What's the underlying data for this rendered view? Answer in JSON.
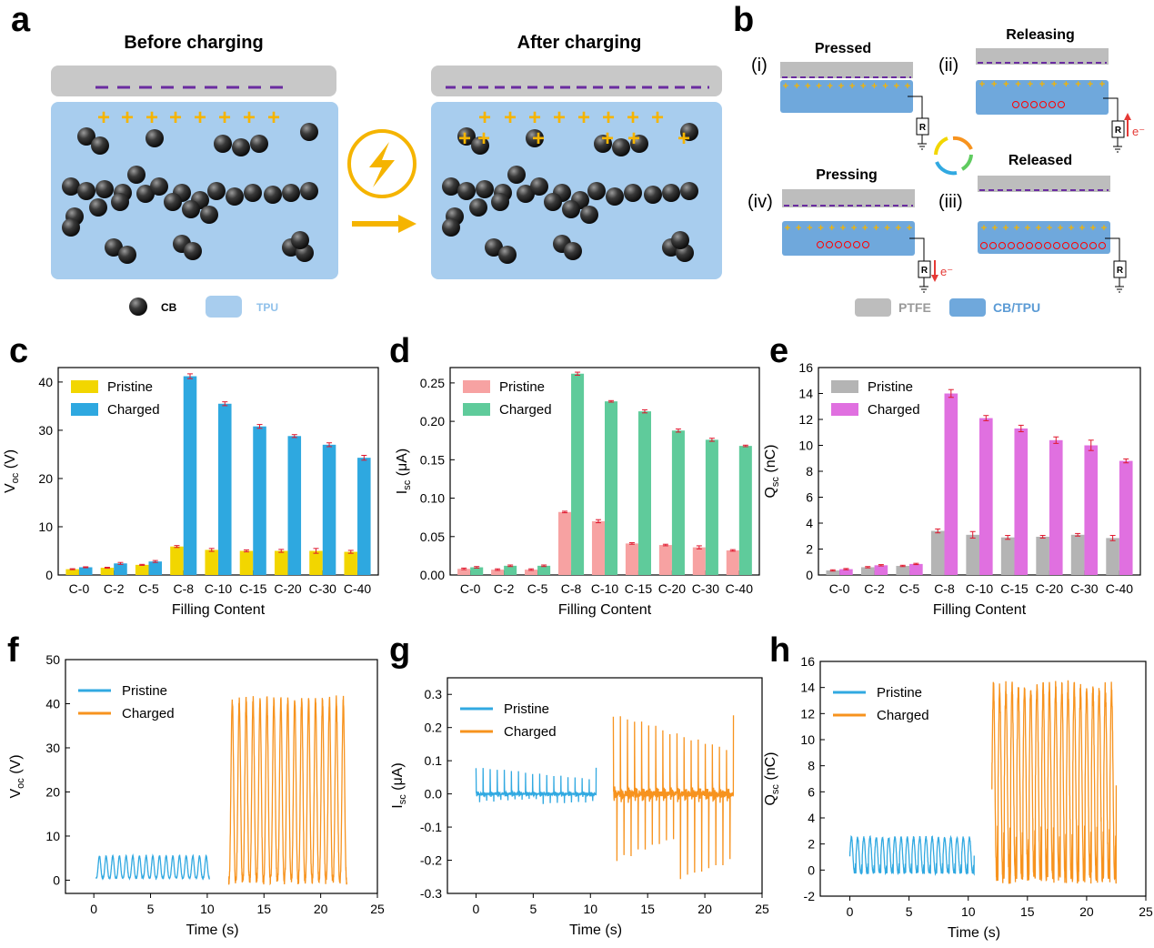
{
  "panels": {
    "a": {
      "letter": "a",
      "left_title": "Before charging",
      "right_title": "After charging",
      "legend": [
        "CB",
        "TPU"
      ],
      "colors": {
        "ptfe": "#c8c8c8",
        "tpu": "#a8cdee",
        "plus": "#f5b400",
        "dash": "#6a2ca0",
        "arrow": "#f5b400"
      }
    },
    "b": {
      "letter": "b",
      "stages": [
        {
          "roman": "(i)",
          "title": "Pressed"
        },
        {
          "roman": "(ii)",
          "title": "Releasing"
        },
        {
          "roman": "(iii)",
          "title": "Released"
        },
        {
          "roman": "(iv)",
          "title": "Pressing"
        }
      ],
      "resistor": "R",
      "electron": "e⁻",
      "legend": [
        "PTFE",
        "CB/TPU"
      ],
      "colors": {
        "ptfe": "#bdbdbd",
        "cbtpu": "#6fa8dc",
        "ring": "#ff0000",
        "arrow": "#e53935"
      }
    },
    "c": {
      "letter": "c"
    },
    "d": {
      "letter": "d"
    },
    "e": {
      "letter": "e"
    },
    "f": {
      "letter": "f"
    },
    "g": {
      "letter": "g"
    },
    "h": {
      "letter": "h"
    }
  },
  "chart_data": [
    {
      "id": "c",
      "type": "bar",
      "xlabel": "Filling Content",
      "ylabel": "Voc (V)",
      "ylim": [
        0,
        43
      ],
      "yticks": [
        0,
        10,
        20,
        30,
        40
      ],
      "categories": [
        "C-0",
        "C-2",
        "C-5",
        "C-8",
        "C-10",
        "C-15",
        "C-20",
        "C-30",
        "C-40"
      ],
      "series": [
        {
          "name": "Pristine",
          "color": "#f2d600",
          "values": [
            1.2,
            1.5,
            2.1,
            5.9,
            5.2,
            5.0,
            5.0,
            5.0,
            4.8
          ],
          "errors": [
            0.1,
            0.1,
            0.1,
            0.2,
            0.3,
            0.2,
            0.3,
            0.5,
            0.3
          ]
        },
        {
          "name": "Charged",
          "color": "#2ea8e0",
          "values": [
            1.6,
            2.4,
            2.8,
            41.2,
            35.5,
            30.8,
            28.8,
            27.0,
            24.3
          ],
          "errors": [
            0.1,
            0.2,
            0.2,
            0.5,
            0.4,
            0.4,
            0.3,
            0.4,
            0.5
          ]
        }
      ]
    },
    {
      "id": "d",
      "type": "bar",
      "xlabel": "Filling Content",
      "ylabel": "Isc (μA)",
      "ylim": [
        0,
        0.27
      ],
      "yticks": [
        0.0,
        0.05,
        0.1,
        0.15,
        0.2,
        0.25
      ],
      "categories": [
        "C-0",
        "C-2",
        "C-5",
        "C-8",
        "C-10",
        "C-15",
        "C-20",
        "C-30",
        "C-40"
      ],
      "series": [
        {
          "name": "Pristine",
          "color": "#f7a2a2",
          "values": [
            0.008,
            0.007,
            0.007,
            0.082,
            0.07,
            0.041,
            0.039,
            0.036,
            0.032
          ],
          "errors": [
            0.001,
            0.001,
            0.001,
            0.001,
            0.002,
            0.001,
            0.001,
            0.002,
            0.001
          ]
        },
        {
          "name": "Charged",
          "color": "#5fcb9b",
          "values": [
            0.01,
            0.012,
            0.012,
            0.262,
            0.226,
            0.213,
            0.188,
            0.176,
            0.168
          ],
          "errors": [
            0.001,
            0.001,
            0.001,
            0.002,
            0.001,
            0.002,
            0.002,
            0.002,
            0.001
          ]
        }
      ]
    },
    {
      "id": "e",
      "type": "bar",
      "xlabel": "Filling Content",
      "ylabel": "Qsc (nC)",
      "ylim": [
        0,
        16
      ],
      "yticks": [
        0,
        2,
        4,
        6,
        8,
        10,
        12,
        14,
        16
      ],
      "categories": [
        "C-0",
        "C-2",
        "C-5",
        "C-8",
        "C-10",
        "C-15",
        "C-20",
        "C-30",
        "C-40"
      ],
      "series": [
        {
          "name": "Pristine",
          "color": "#b4b4b4",
          "values": [
            0.35,
            0.6,
            0.7,
            3.4,
            3.1,
            2.9,
            2.95,
            3.1,
            2.85
          ],
          "errors": [
            0.05,
            0.05,
            0.05,
            0.15,
            0.25,
            0.15,
            0.1,
            0.1,
            0.2
          ]
        },
        {
          "name": "Charged",
          "color": "#e070e0",
          "values": [
            0.45,
            0.75,
            0.85,
            14.0,
            12.1,
            11.3,
            10.4,
            10.0,
            8.8
          ],
          "errors": [
            0.05,
            0.05,
            0.05,
            0.3,
            0.2,
            0.25,
            0.25,
            0.4,
            0.15
          ]
        }
      ]
    },
    {
      "id": "f",
      "type": "line",
      "xlabel": "Time (s)",
      "ylabel": "Voc (V)",
      "xlim": [
        -2.5,
        25
      ],
      "ylim": [
        -3,
        50
      ],
      "xticks": [
        0,
        5,
        10,
        15,
        20,
        25
      ],
      "yticks": [
        0,
        10,
        20,
        30,
        40,
        50
      ],
      "series": [
        {
          "name": "Pristine",
          "color": "#31a9e1",
          "t_start": 0.2,
          "t_end": 10.2,
          "pulses": 17,
          "peak": 5.5,
          "low": 0.5
        },
        {
          "name": "Charged",
          "color": "#f7931e",
          "t_start": 11.9,
          "t_end": 22.3,
          "pulses": 17,
          "peak": 41.0,
          "low": 0.0
        }
      ]
    },
    {
      "id": "g",
      "type": "line",
      "xlabel": "Time (s)",
      "ylabel": "Isc (μA)",
      "xlim": [
        -2.5,
        25
      ],
      "ylim": [
        -0.3,
        0.35
      ],
      "xticks": [
        0,
        5,
        10,
        15,
        20,
        25
      ],
      "yticks": [
        -0.3,
        -0.2,
        -0.1,
        0.0,
        0.1,
        0.2,
        0.3
      ],
      "series": [
        {
          "name": "Pristine",
          "color": "#31a9e1",
          "t_start": 0.0,
          "t_end": 10.5,
          "pulses": 17,
          "peak": 0.08,
          "low": -0.03
        },
        {
          "name": "Charged",
          "color": "#f7931e",
          "t_start": 12.0,
          "t_end": 22.5,
          "pulses": 17,
          "peak": 0.24,
          "low": -0.26
        }
      ]
    },
    {
      "id": "h",
      "type": "line",
      "xlabel": "Time (s)",
      "ylabel": "Qsc (nC)",
      "xlim": [
        -2.5,
        25
      ],
      "ylim": [
        -2,
        16
      ],
      "xticks": [
        0,
        5,
        10,
        15,
        20,
        25
      ],
      "yticks": [
        -2,
        0,
        2,
        4,
        6,
        8,
        10,
        12,
        14,
        16
      ],
      "series": [
        {
          "name": "Pristine",
          "color": "#31a9e1",
          "t_start": 0.0,
          "t_end": 10.5,
          "pulses": 20,
          "peak": 2.5,
          "low": -0.2
        },
        {
          "name": "Charged",
          "color": "#f7931e",
          "t_start": 12.0,
          "t_end": 22.5,
          "pulses": 20,
          "peak": 14.0,
          "low": -0.5
        }
      ]
    }
  ]
}
